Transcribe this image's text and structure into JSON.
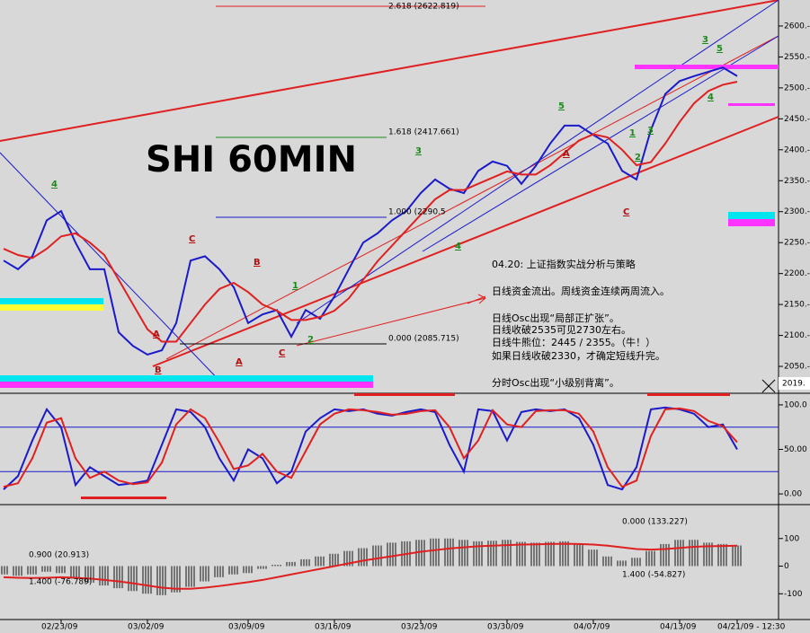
{
  "chart_data": [
    {
      "type": "line",
      "title": "SHI 60MIN",
      "categories": [
        null,
        null,
        null,
        null,
        "02/23/09",
        null,
        null,
        null,
        null,
        null,
        "03/02/09",
        null,
        null,
        null,
        null,
        null,
        null,
        "03/09/09",
        null,
        null,
        null,
        null,
        null,
        "03/16/09",
        null,
        null,
        null,
        null,
        null,
        "03/23/09",
        null,
        null,
        null,
        null,
        null,
        "03/30/09",
        null,
        null,
        null,
        null,
        null,
        "04/07/09",
        null,
        null,
        null,
        null,
        null,
        "04/13/09",
        null,
        null,
        null,
        "04/21/09 - 12:30"
      ],
      "series": [
        {
          "color": "#1a1acc",
          "values": [
            2221,
            2207,
            2228,
            2286,
            2301,
            2250,
            2207,
            2207,
            2105,
            2083,
            2069,
            2076,
            2120,
            2221,
            2228,
            2207,
            2178,
            2120,
            2134,
            2141,
            2098,
            2141,
            2127,
            2163,
            2207,
            2250,
            2265,
            2286,
            2301,
            2330,
            2352,
            2337,
            2330,
            2366,
            2381,
            2374,
            2345,
            2374,
            2410,
            2439,
            2439,
            2424,
            2410,
            2366,
            2352,
            2432,
            2490,
            2511,
            2519,
            2526,
            2533,
            2519
          ]
        },
        {
          "color": "#e02020",
          "values": [
            2240,
            2230,
            2225,
            2240,
            2260,
            2265,
            2250,
            2230,
            2190,
            2150,
            2110,
            2090,
            2090,
            2120,
            2150,
            2175,
            2185,
            2170,
            2150,
            2140,
            2125,
            2125,
            2130,
            2140,
            2160,
            2190,
            2220,
            2245,
            2270,
            2295,
            2320,
            2335,
            2335,
            2345,
            2355,
            2365,
            2360,
            2360,
            2375,
            2395,
            2415,
            2425,
            2420,
            2400,
            2375,
            2380,
            2410,
            2445,
            2475,
            2495,
            2505,
            2510
          ]
        }
      ],
      "ylim": [
        2008,
        2642
      ],
      "yticks": [
        {
          "value": 2050,
          "label": "2050.-"
        },
        {
          "value": 2100,
          "label": "2100.-"
        },
        {
          "value": 2150,
          "label": "2150.-"
        },
        {
          "value": 2200,
          "label": "2200.-"
        },
        {
          "value": 2250,
          "label": "2250.-"
        },
        {
          "value": 2300,
          "label": "2300.-"
        },
        {
          "value": 2350,
          "label": "2350.-"
        },
        {
          "value": 2400,
          "label": "2400.-"
        },
        {
          "value": 2450,
          "label": "2450.-"
        },
        {
          "value": 2500,
          "label": "2500.-"
        },
        {
          "value": 2550,
          "label": "2550.-"
        },
        {
          "value": 2600,
          "label": "2600.-"
        }
      ],
      "annotations": [
        "2.618 (2622.819)",
        "1.618 (2417.661)",
        "1.000 (2290.5",
        "0.000 (2085.715)"
      ],
      "wave_labels": [
        "4",
        "C",
        "B",
        "A",
        "B",
        "A",
        "C",
        "1",
        "2",
        "3",
        "4",
        "5",
        "A",
        "C",
        "3",
        "5",
        "4",
        "1",
        "2",
        "3"
      ],
      "notes": [
        "04.20: 上证指数实战分析与策略",
        "日线资金流出。周线资金连续两周流入。",
        "日线Osc出现“局部正扩张”。",
        "日线收破2535可见2730左右。",
        "日线牛熊位：2445 / 2355。（牛！）",
        "如果日线收破2330，才确定短线升完。",
        "分时Osc出现“小级别背离”。"
      ],
      "corner_label": "2019."
    },
    {
      "type": "line",
      "series": [
        {
          "color": "#1a1acc",
          "values": [
            5,
            20,
            60,
            95,
            75,
            10,
            30,
            20,
            10,
            12,
            15,
            55,
            95,
            92,
            75,
            40,
            15,
            50,
            40,
            12,
            25,
            70,
            85,
            95,
            93,
            95,
            90,
            88,
            92,
            95,
            92,
            55,
            25,
            95,
            93,
            60,
            92,
            95,
            93,
            95,
            85,
            55,
            10,
            5,
            30,
            95,
            97,
            95,
            90,
            75,
            78,
            50
          ]
        },
        {
          "color": "#e02020",
          "values": [
            8,
            12,
            40,
            80,
            85,
            40,
            18,
            25,
            15,
            11,
            13,
            35,
            78,
            95,
            85,
            58,
            28,
            32,
            45,
            25,
            18,
            48,
            78,
            90,
            95,
            94,
            92,
            89,
            90,
            93,
            94,
            75,
            40,
            60,
            94,
            78,
            75,
            93,
            94,
            94,
            90,
            70,
            30,
            8,
            15,
            65,
            95,
            96,
            93,
            82,
            76,
            58
          ]
        }
      ],
      "ylim": [
        -11,
        111
      ],
      "yticks": [
        {
          "value": 0,
          "label": "0.00"
        },
        {
          "value": 50,
          "label": "50.00"
        },
        {
          "value": 100,
          "label": "100.0"
        }
      ],
      "reference_lines": [
        75,
        25
      ]
    },
    {
      "type": "combo",
      "series": [
        {
          "type": "bar",
          "color": "#111111",
          "values": [
            -30,
            -35,
            -30,
            -20,
            -25,
            -45,
            -60,
            -70,
            -80,
            -90,
            -100,
            -105,
            -95,
            -75,
            -55,
            -40,
            -30,
            -25,
            -10,
            5,
            15,
            25,
            35,
            45,
            55,
            65,
            75,
            85,
            90,
            95,
            100,
            100,
            95,
            90,
            92,
            95,
            88,
            85,
            88,
            90,
            80,
            60,
            35,
            20,
            30,
            55,
            80,
            95,
            95,
            85,
            80,
            75
          ]
        },
        {
          "type": "line",
          "color": "#e02020",
          "values": [
            -40,
            -42,
            -43,
            -42,
            -40,
            -42,
            -45,
            -50,
            -55,
            -62,
            -70,
            -78,
            -82,
            -82,
            -78,
            -72,
            -65,
            -58,
            -50,
            -40,
            -30,
            -20,
            -10,
            0,
            10,
            20,
            28,
            36,
            44,
            52,
            58,
            64,
            68,
            72,
            74,
            76,
            78,
            79,
            80,
            81,
            80,
            78,
            74,
            68,
            62,
            60,
            62,
            66,
            70,
            72,
            73,
            74
          ]
        }
      ],
      "ylim": [
        -190,
        213
      ],
      "yticks": [
        -100,
        0,
        100
      ],
      "annotations": [
        "0.900 (20.913)",
        "1.400 (-76.789)",
        "0.000 (133.227)",
        "1.400 (-54.827)"
      ]
    }
  ]
}
